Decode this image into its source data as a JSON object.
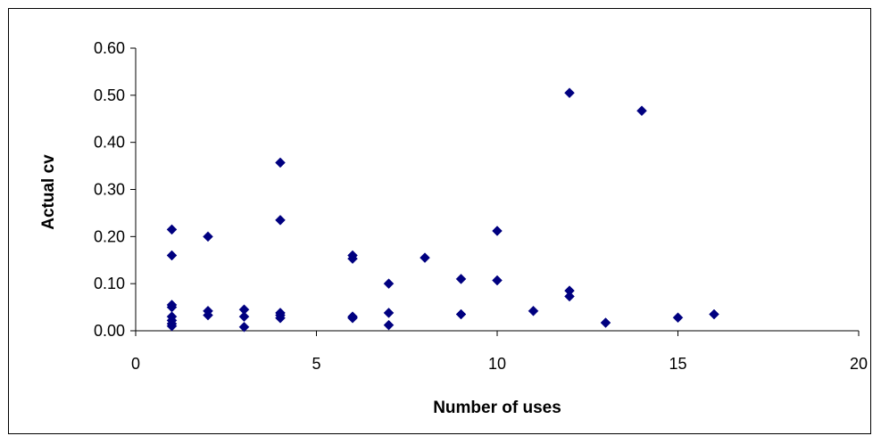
{
  "chart_data": {
    "type": "scatter",
    "title": "",
    "xlabel": "Number of uses",
    "ylabel": "Actual cv",
    "xlim": [
      0,
      20
    ],
    "ylim": [
      0,
      0.6
    ],
    "x_ticks": [
      "0",
      "5",
      "10",
      "15",
      "20"
    ],
    "y_ticks": [
      "0.00",
      "0.10",
      "0.20",
      "0.30",
      "0.40",
      "0.50",
      "0.60"
    ],
    "grid": false,
    "legend": "none",
    "marker": "diamond",
    "marker_color": "#000080",
    "series": [
      {
        "points": [
          {
            "x": 1,
            "y": 0.215
          },
          {
            "x": 1,
            "y": 0.16
          },
          {
            "x": 1,
            "y": 0.055
          },
          {
            "x": 1,
            "y": 0.05
          },
          {
            "x": 1,
            "y": 0.03
          },
          {
            "x": 1,
            "y": 0.022
          },
          {
            "x": 1,
            "y": 0.015
          },
          {
            "x": 1,
            "y": 0.01
          },
          {
            "x": 2,
            "y": 0.2
          },
          {
            "x": 2,
            "y": 0.042
          },
          {
            "x": 2,
            "y": 0.033
          },
          {
            "x": 3,
            "y": 0.045
          },
          {
            "x": 3,
            "y": 0.03
          },
          {
            "x": 3,
            "y": 0.008
          },
          {
            "x": 4,
            "y": 0.357
          },
          {
            "x": 4,
            "y": 0.235
          },
          {
            "x": 4,
            "y": 0.038
          },
          {
            "x": 4,
            "y": 0.033
          },
          {
            "x": 4,
            "y": 0.027
          },
          {
            "x": 6,
            "y": 0.16
          },
          {
            "x": 6,
            "y": 0.153
          },
          {
            "x": 6,
            "y": 0.03
          },
          {
            "x": 6,
            "y": 0.027
          },
          {
            "x": 7,
            "y": 0.1
          },
          {
            "x": 7,
            "y": 0.038
          },
          {
            "x": 7,
            "y": 0.012
          },
          {
            "x": 8,
            "y": 0.155
          },
          {
            "x": 9,
            "y": 0.11
          },
          {
            "x": 9,
            "y": 0.035
          },
          {
            "x": 10,
            "y": 0.212
          },
          {
            "x": 10,
            "y": 0.107
          },
          {
            "x": 11,
            "y": 0.042
          },
          {
            "x": 12,
            "y": 0.505
          },
          {
            "x": 12,
            "y": 0.085
          },
          {
            "x": 12,
            "y": 0.073
          },
          {
            "x": 13,
            "y": 0.017
          },
          {
            "x": 14,
            "y": 0.467
          },
          {
            "x": 15,
            "y": 0.028
          },
          {
            "x": 16,
            "y": 0.035
          }
        ]
      }
    ]
  }
}
